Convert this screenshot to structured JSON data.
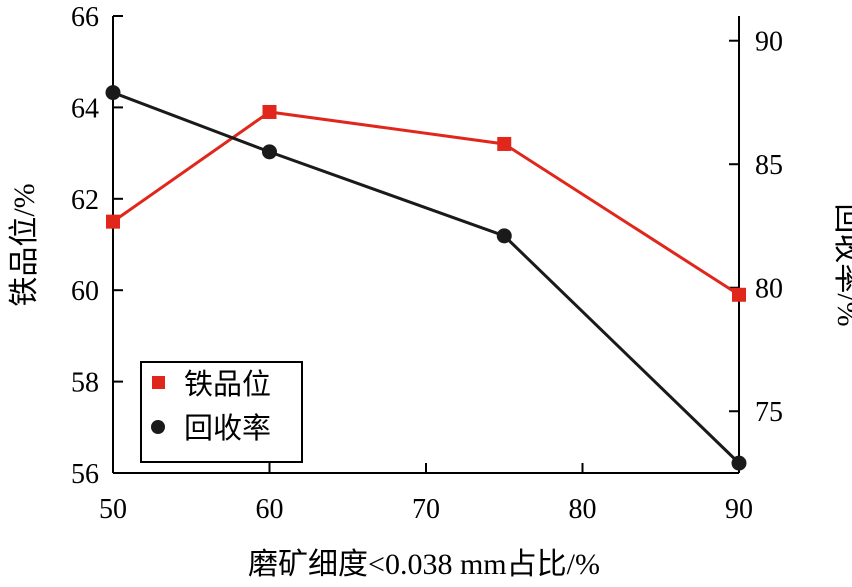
{
  "chart_data": {
    "type": "line",
    "xlabel": "磨矿细度<0.038 mm占比/%",
    "ylabel_left": "铁品位/%",
    "ylabel_right": "回收率/%",
    "xlim": [
      50,
      90
    ],
    "ylim_left": [
      56,
      66
    ],
    "ylim_right": [
      72.5,
      91
    ],
    "x_ticks": [
      50,
      60,
      70,
      80,
      90
    ],
    "y_left_ticks": [
      56,
      58,
      60,
      62,
      64,
      66
    ],
    "y_right_ticks": [
      75,
      80,
      85,
      90
    ],
    "grid": false,
    "legend_position": "bottom-left",
    "series": [
      {
        "name": "铁品位",
        "axis": "left",
        "color": "#e1261c",
        "marker": "square",
        "x": [
          50,
          60,
          75,
          90
        ],
        "y": [
          61.5,
          63.9,
          63.2,
          59.9
        ]
      },
      {
        "name": "回收率",
        "axis": "right",
        "color": "#1a1a1a",
        "marker": "circle",
        "x": [
          50,
          60,
          75,
          90
        ],
        "y": [
          87.9,
          85.5,
          82.1,
          72.9
        ]
      }
    ]
  }
}
